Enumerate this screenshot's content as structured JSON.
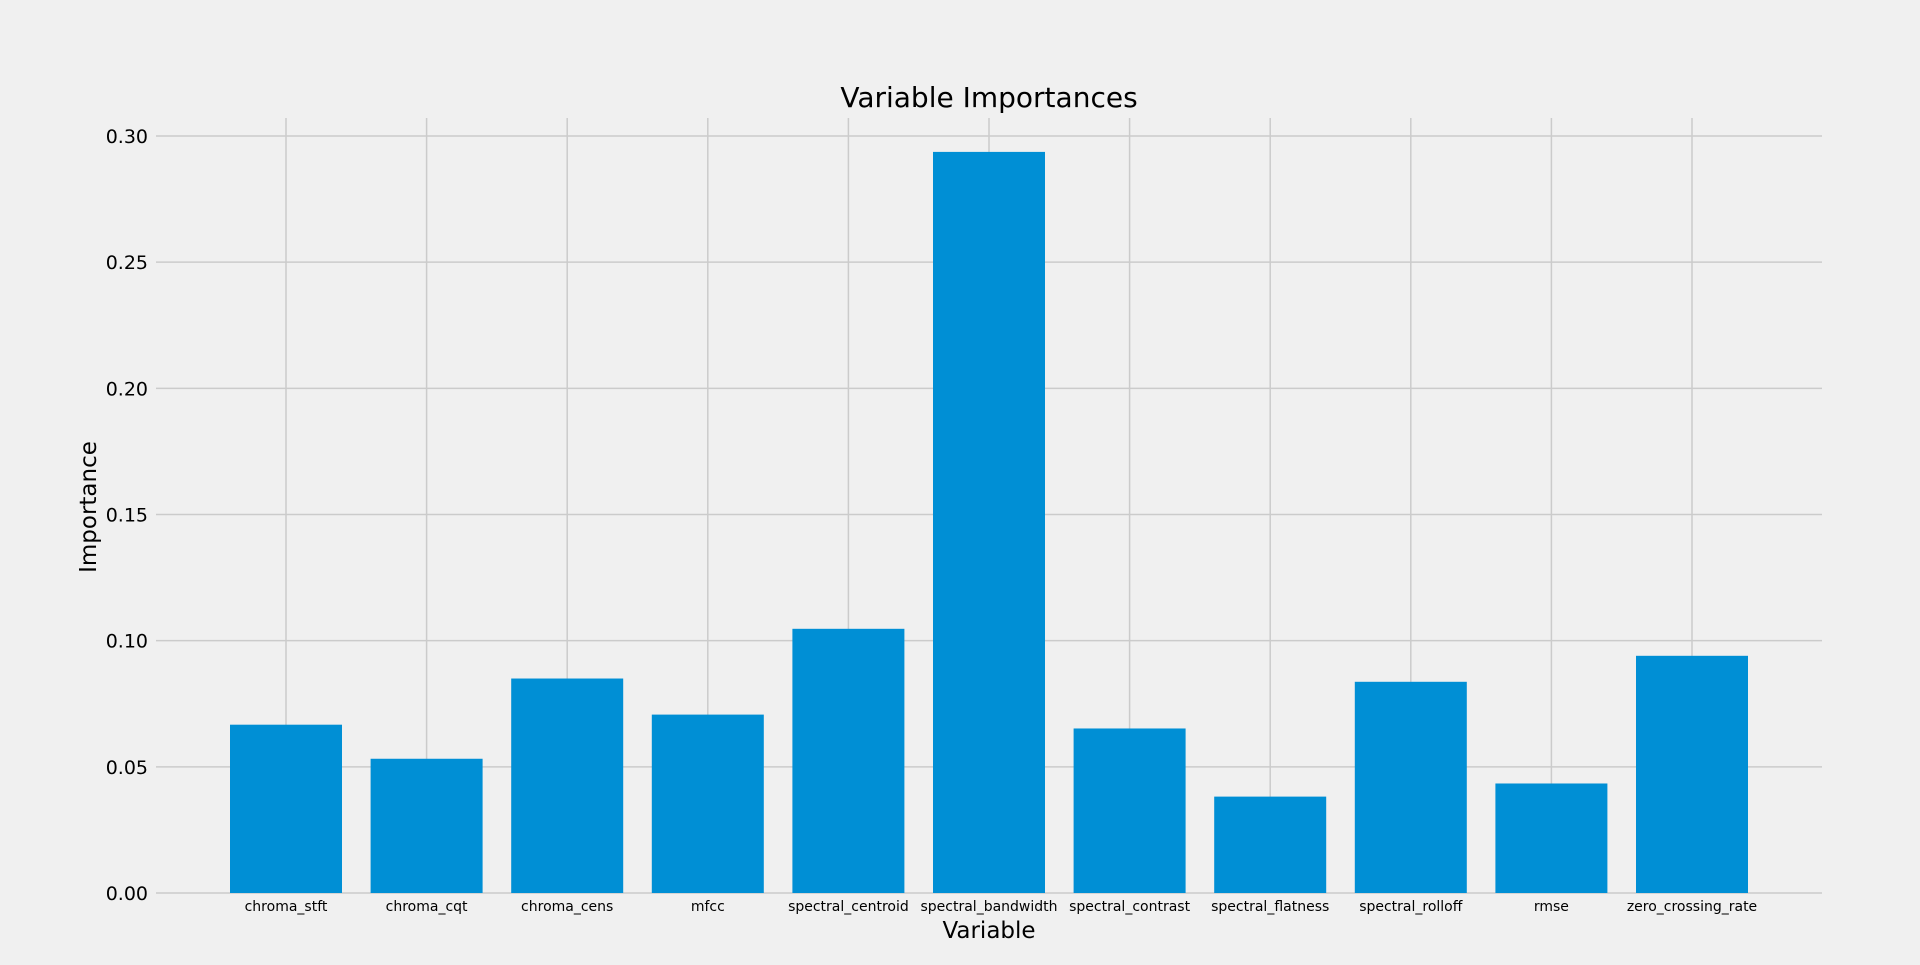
{
  "chart_data": {
    "type": "bar",
    "title": "Variable Importances",
    "xlabel": "Variable",
    "ylabel": "Importance",
    "categories": [
      "chroma_stft",
      "chroma_cqt",
      "chroma_cens",
      "mfcc",
      "spectral_centroid",
      "spectral_bandwidth",
      "spectral_contrast",
      "spectral_flatness",
      "spectral_rolloff",
      "rmse",
      "zero_crossing_rate"
    ],
    "values": [
      0.0667,
      0.0532,
      0.085,
      0.0707,
      0.1047,
      0.2937,
      0.0652,
      0.0382,
      0.0837,
      0.0434,
      0.094
    ],
    "ylim": [
      0,
      0.3
    ],
    "yticks": [
      "0.00",
      "0.05",
      "0.10",
      "0.15",
      "0.20",
      "0.25",
      "0.30"
    ],
    "grid": true,
    "bar_color": "#008fd5",
    "grid_color": "#cbcbcb",
    "background_color": "#f0f0f0"
  }
}
